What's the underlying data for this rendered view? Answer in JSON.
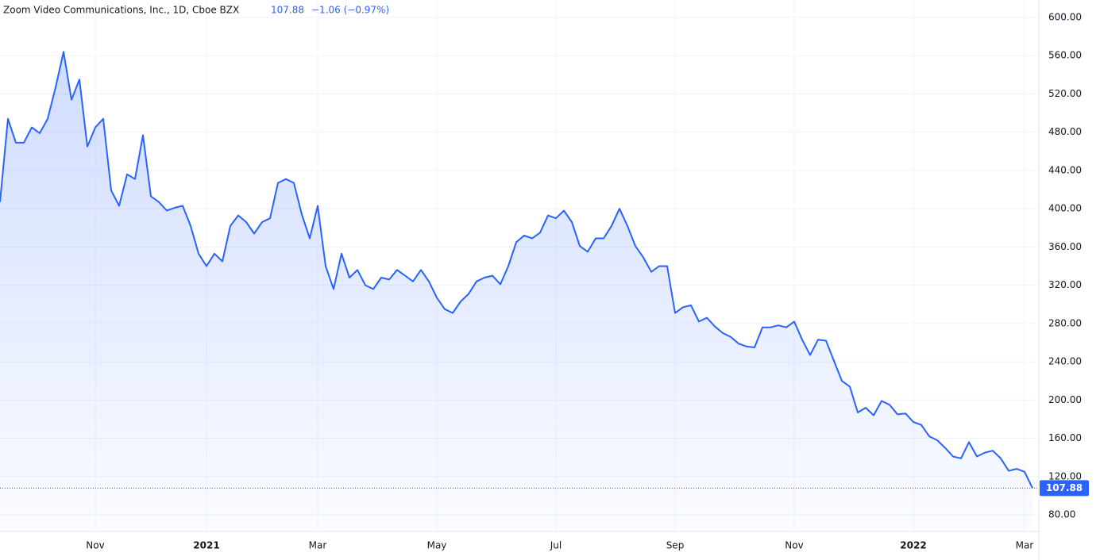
{
  "chart_data": {
    "type": "area",
    "title": "Zoom Video Communications, Inc., 1D, Cboe BZX",
    "change": "−1.06 (−0.97%)",
    "color": "#2962ff",
    "grid": true,
    "categories": [
      null,
      null,
      null,
      null,
      null,
      null,
      null,
      null,
      null,
      null,
      null,
      null,
      "Nov",
      null,
      null,
      null,
      null,
      null,
      null,
      null,
      null,
      null,
      null,
      null,
      null,
      null,
      "2021",
      null,
      null,
      null,
      null,
      null,
      null,
      null,
      null,
      null,
      null,
      null,
      null,
      null,
      "Mar",
      null,
      null,
      null,
      null,
      null,
      null,
      null,
      null,
      null,
      null,
      null,
      null,
      null,
      null,
      "May",
      null,
      null,
      null,
      null,
      null,
      null,
      null,
      null,
      null,
      null,
      null,
      null,
      null,
      null,
      "Jul",
      null,
      null,
      null,
      null,
      null,
      null,
      null,
      null,
      null,
      null,
      null,
      null,
      null,
      null,
      "Sep",
      null,
      null,
      null,
      null,
      null,
      null,
      null,
      null,
      null,
      null,
      null,
      null,
      null,
      null,
      "Nov",
      null,
      null,
      null,
      null,
      null,
      null,
      null,
      null,
      null,
      null,
      null,
      null,
      null,
      null,
      "2022",
      null,
      null,
      null,
      null,
      null,
      null,
      null,
      null,
      null,
      null,
      null,
      null,
      null,
      "Mar",
      null
    ],
    "values": [
      407,
      494,
      469,
      469,
      485,
      479,
      494,
      527,
      564,
      514,
      535,
      465,
      485,
      494,
      419,
      403,
      436,
      431,
      477,
      413,
      407,
      398,
      401,
      403,
      382,
      353,
      340,
      353,
      345,
      382,
      393,
      386,
      374,
      386,
      390,
      427,
      431,
      427,
      394,
      369,
      403,
      340,
      316,
      353,
      328,
      336,
      320,
      316,
      328,
      326,
      336,
      330,
      324,
      336,
      324,
      307,
      295,
      291,
      303,
      311,
      324,
      328,
      330,
      321,
      340,
      365,
      372,
      369,
      375,
      393,
      390,
      398,
      386,
      361,
      355,
      369,
      369,
      382,
      400,
      382,
      361,
      349,
      334,
      340,
      340,
      291,
      297,
      299,
      282,
      286,
      277,
      270,
      266,
      259,
      256,
      255,
      276,
      276,
      278,
      276,
      282,
      263,
      247,
      263,
      262,
      241,
      220,
      214,
      187,
      192,
      184,
      199,
      195,
      185,
      186,
      177,
      174,
      162,
      158,
      150,
      141,
      139,
      156,
      141,
      145,
      147,
      139,
      126,
      128,
      125,
      107.88
    ],
    "ylim": [
      62.6,
      618.2
    ],
    "yticks": [
      {
        "value": 80,
        "label": "80.00"
      },
      {
        "value": 120,
        "label": "120.00"
      },
      {
        "value": 160,
        "label": "160.00"
      },
      {
        "value": 200,
        "label": "200.00"
      },
      {
        "value": 240,
        "label": "240.00"
      },
      {
        "value": 280,
        "label": "280.00"
      },
      {
        "value": 320,
        "label": "320.00"
      },
      {
        "value": 360,
        "label": "360.00"
      },
      {
        "value": 400,
        "label": "400.00"
      },
      {
        "value": 440,
        "label": "440.00"
      },
      {
        "value": 480,
        "label": "480.00"
      },
      {
        "value": 520,
        "label": "520.00"
      },
      {
        "value": 560,
        "label": "560.00"
      },
      {
        "value": 600,
        "label": "600.00"
      }
    ]
  }
}
